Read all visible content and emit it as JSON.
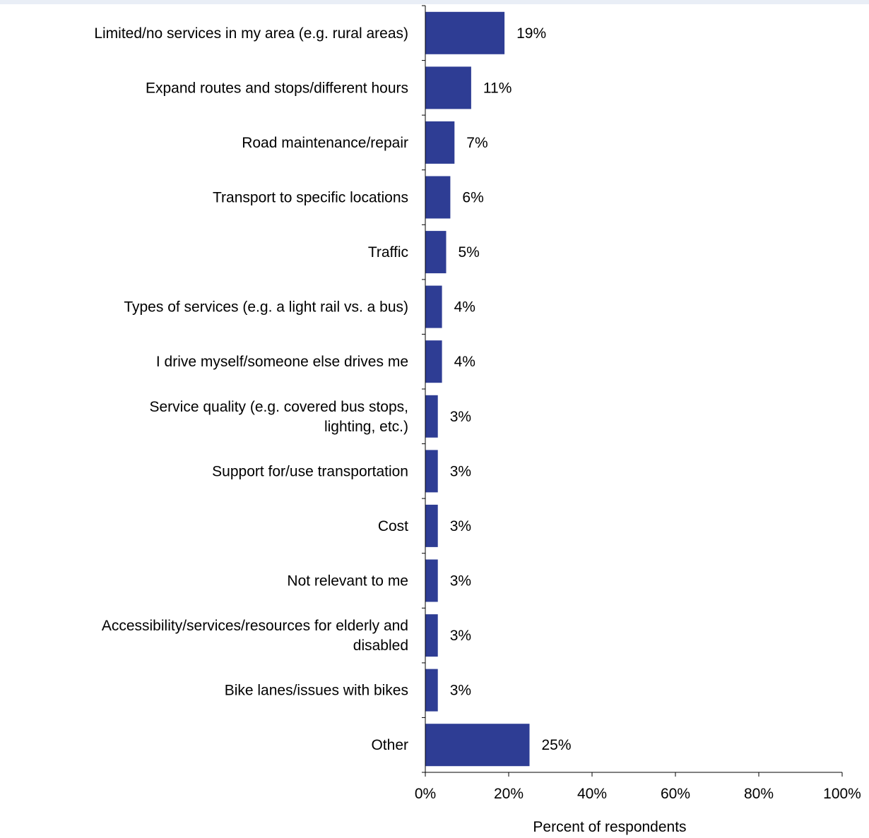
{
  "chart_data": {
    "type": "bar",
    "orientation": "horizontal",
    "title": "",
    "xlabel": "Percent of respondents",
    "ylabel": "",
    "xlim": [
      0,
      100
    ],
    "x_ticks": [
      0,
      20,
      40,
      60,
      80,
      100
    ],
    "x_tick_labels": [
      "0%",
      "20%",
      "40%",
      "60%",
      "80%",
      "100%"
    ],
    "grid": false,
    "legend": "none",
    "bar_color": "#2e3d94",
    "categories": [
      "Limited/no services in my area (e.g. rural areas)",
      "Expand routes and stops/different hours",
      "Road maintenance/repair",
      "Transport to specific locations",
      "Traffic",
      "Types of services (e.g. a light rail vs. a bus)",
      "I drive myself/someone else drives me",
      "Service quality (e.g. covered bus stops, lighting, etc.)",
      "Support for/use transportation",
      "Cost",
      "Not relevant to me",
      "Accessibility/services/resources for elderly and disabled",
      "Bike lanes/issues with bikes",
      "Other"
    ],
    "values": [
      19,
      11,
      7,
      6,
      5,
      4,
      4,
      3,
      3,
      3,
      3,
      3,
      3,
      25
    ],
    "value_labels": [
      "19%",
      "11%",
      "7%",
      "6%",
      "5%",
      "4%",
      "4%",
      "3%",
      "3%",
      "3%",
      "3%",
      "3%",
      "3%",
      "25%"
    ]
  }
}
